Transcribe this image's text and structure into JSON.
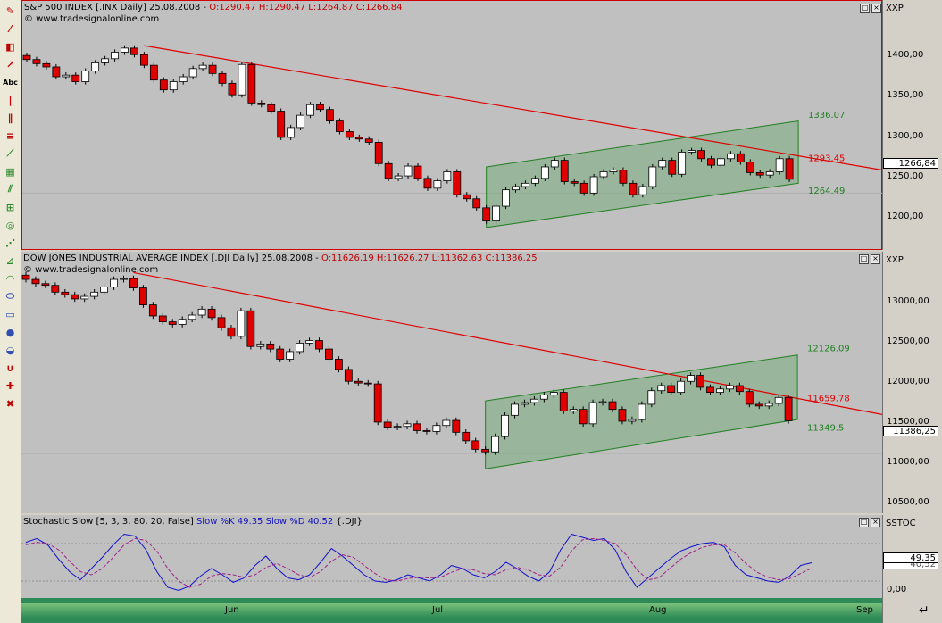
{
  "toolbar": {
    "items": [
      "pencil-icon",
      "trendline-icon",
      "eraser-icon",
      "arrow-icon",
      "text-tool",
      "vertical-line-icon",
      "parallel-lines-icon",
      "fibonacci-icon",
      "ray-icon",
      "regression-channel-icon",
      "gann-icon",
      "andrews-icon",
      "cycle-icon",
      "speed-lines-icon",
      "fan-icon",
      "arc-icon",
      "ellipse-icon",
      "rectangle-icon",
      "circle-icon",
      "half-circle-icon",
      "magnet-icon",
      "crosshair-icon",
      "delete-tool-icon"
    ],
    "text_label": "Abc"
  },
  "sp500": {
    "title": "S&P 500 INDEX [.INX  Daily] 25.08.2008 - ",
    "ohlc": "O:1290.47  H:1290.47  L:1264.87  C:1266.84",
    "watermark": "© www.tradesignalonline.com",
    "scale_name": "XXP",
    "ticks": [
      "1400,00",
      "1350,00",
      "1300,00",
      "1250,00",
      "1200,00"
    ],
    "last": "1266,84",
    "labels": {
      "upper": "1336.07",
      "mid": "1293.45",
      "lower": "1264.49"
    }
  },
  "dji": {
    "title": "DOW JONES INDUSTRIAL AVERAGE INDEX [.DJI  Daily] 25.08.2008 - ",
    "ohlc": "O:11626.19  H:11626.27  L:11362.63  C:11386.25",
    "watermark": "© www.tradesignalonline.com",
    "scale_name": "XXP",
    "ticks": [
      "13000,00",
      "12500,00",
      "12000,00",
      "11500,00",
      "11000,00",
      "10500,00"
    ],
    "last": "11386,25",
    "labels": {
      "upper": "12126.09",
      "mid": "11659.78",
      "lower": "11349.5"
    }
  },
  "stoch": {
    "title": "Stochastic Slow [5, 3, 3, 80, 20, False] ",
    "kd": "Slow %K 49.35  Slow %D 40.52",
    "suffix": " {.DJI}",
    "scale_name": "SSTOC",
    "last": "49,35",
    "under": "40,52",
    "tick_zero": "0,00"
  },
  "xaxis": {
    "months": [
      "Jun",
      "Jul",
      "Aug",
      "Sep"
    ]
  },
  "colors": {
    "up": "#ffffff",
    "down": "#e00000",
    "channel": "#6aa870",
    "trend": "#e00000",
    "k": "#1010d0",
    "d": "#a0208a"
  },
  "chart_data": [
    {
      "type": "candlestick",
      "title": "S&P 500 INDEX [.INX  Daily] 25.08.2008",
      "ylim": [
        1185,
        1465
      ],
      "yticks": [
        1200,
        1250,
        1300,
        1350,
        1400
      ],
      "closes": [
        1413,
        1408,
        1404,
        1392,
        1394,
        1386,
        1399,
        1409,
        1414,
        1422,
        1427,
        1419,
        1406,
        1388,
        1376,
        1386,
        1392,
        1402,
        1406,
        1396,
        1384,
        1370,
        1407,
        1360,
        1358,
        1350,
        1318,
        1330,
        1345,
        1358,
        1352,
        1338,
        1325,
        1318,
        1316,
        1312,
        1286,
        1268,
        1271,
        1283,
        1268,
        1256,
        1265,
        1276,
        1248,
        1243,
        1232,
        1216,
        1234,
        1254,
        1258,
        1262,
        1268,
        1282,
        1290,
        1264,
        1262,
        1250,
        1270,
        1276,
        1278,
        1262,
        1248,
        1258,
        1282,
        1290,
        1273,
        1300,
        1302,
        1292,
        1284,
        1292,
        1298,
        1288,
        1275,
        1272,
        1276,
        1292,
        1266.84
      ]
    },
    {
      "type": "candlestick",
      "title": "DOW JONES INDUSTRIAL AVERAGE INDEX [.DJI  Daily] 25.08.2008",
      "ylim": [
        10350,
        13250
      ],
      "yticks": [
        10500,
        11000,
        11500,
        12000,
        12500,
        13000
      ],
      "closes": [
        13050,
        13000,
        12980,
        12900,
        12870,
        12820,
        12850,
        12900,
        12960,
        13050,
        13060,
        12950,
        12750,
        12620,
        12550,
        12520,
        12580,
        12630,
        12700,
        12600,
        12480,
        12380,
        12680,
        12260,
        12290,
        12230,
        12110,
        12200,
        12300,
        12330,
        12230,
        12110,
        11990,
        11850,
        11830,
        11820,
        11370,
        11310,
        11320,
        11350,
        11270,
        11260,
        11330,
        11390,
        11250,
        11150,
        11050,
        11020,
        11200,
        11450,
        11580,
        11600,
        11640,
        11690,
        11720,
        11500,
        11520,
        11350,
        11600,
        11610,
        11520,
        11380,
        11400,
        11580,
        11740,
        11800,
        11720,
        11850,
        11920,
        11780,
        11720,
        11760,
        11800,
        11730,
        11580,
        11560,
        11590,
        11660,
        11386.25
      ]
    },
    {
      "type": "line",
      "title": "Stochastic Slow [5, 3, 3, 80, 20, False]",
      "ylim": [
        0,
        100
      ],
      "series": [
        {
          "name": "Slow %K",
          "values": [
            82,
            88,
            78,
            55,
            35,
            22,
            40,
            58,
            78,
            95,
            92,
            70,
            35,
            10,
            5,
            12,
            28,
            40,
            30,
            18,
            25,
            45,
            60,
            40,
            25,
            22,
            30,
            50,
            72,
            60,
            45,
            30,
            20,
            18,
            22,
            30,
            25,
            20,
            30,
            45,
            40,
            30,
            25,
            35,
            50,
            40,
            28,
            20,
            35,
            70,
            95,
            90,
            85,
            88,
            70,
            35,
            10,
            25,
            40,
            55,
            68,
            75,
            80,
            82,
            75,
            45,
            30,
            25,
            20,
            18,
            28,
            45,
            49.35
          ]
        },
        {
          "name": "Slow %D",
          "values": [
            78,
            82,
            80,
            70,
            52,
            35,
            30,
            40,
            58,
            78,
            88,
            85,
            68,
            40,
            20,
            10,
            15,
            28,
            32,
            30,
            26,
            30,
            42,
            48,
            40,
            30,
            26,
            35,
            52,
            62,
            58,
            45,
            32,
            22,
            20,
            24,
            26,
            25,
            26,
            34,
            40,
            38,
            32,
            30,
            38,
            42,
            38,
            30,
            28,
            42,
            68,
            86,
            88,
            85,
            80,
            62,
            38,
            22,
            25,
            40,
            55,
            66,
            74,
            78,
            78,
            65,
            48,
            34,
            26,
            22,
            24,
            32,
            40.52
          ]
        }
      ]
    }
  ]
}
